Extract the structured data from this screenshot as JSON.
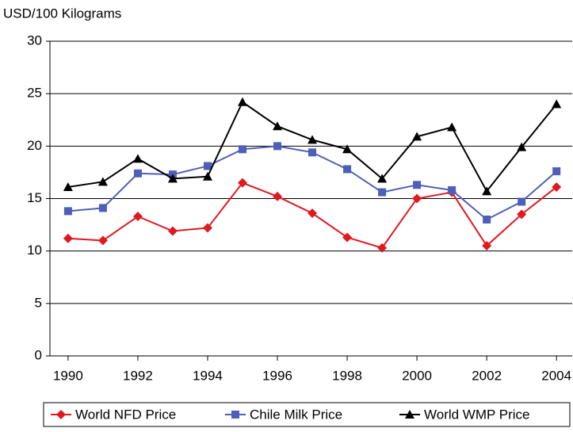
{
  "chart_data": {
    "type": "line",
    "y_label": "USD/100 Kilograms",
    "x": [
      1990,
      1991,
      1992,
      1993,
      1994,
      1995,
      1996,
      1997,
      1998,
      1999,
      2000,
      2001,
      2002,
      2003,
      2004
    ],
    "series": [
      {
        "name": "World NFD Price",
        "color": "#e0191f",
        "marker": "diamond",
        "values": [
          11.2,
          11.0,
          13.3,
          11.9,
          12.2,
          16.5,
          15.2,
          13.6,
          11.3,
          10.3,
          15.0,
          15.6,
          10.5,
          13.5,
          16.1
        ]
      },
      {
        "name": "Chile Milk Price",
        "color": "#4f5fb8",
        "marker": "square",
        "values": [
          13.8,
          14.1,
          17.4,
          17.3,
          18.1,
          19.7,
          20.0,
          19.4,
          17.8,
          15.6,
          16.3,
          15.8,
          13.0,
          14.7,
          17.6
        ]
      },
      {
        "name": "World WMP Price",
        "color": "#000000",
        "marker": "triangle",
        "values": [
          16.1,
          16.6,
          18.8,
          16.9,
          17.1,
          24.2,
          21.9,
          20.6,
          19.7,
          16.9,
          20.9,
          21.8,
          15.7,
          19.9,
          24.0
        ]
      }
    ],
    "xlim": [
      1989.48,
      2004.45
    ],
    "xticks": [
      1990,
      1992,
      1994,
      1996,
      1998,
      2000,
      2002,
      2004
    ],
    "ylim": [
      0,
      30
    ],
    "yticks": [
      0,
      5,
      10,
      15,
      20,
      25,
      30
    ],
    "grid": true,
    "legend": "bottom"
  }
}
